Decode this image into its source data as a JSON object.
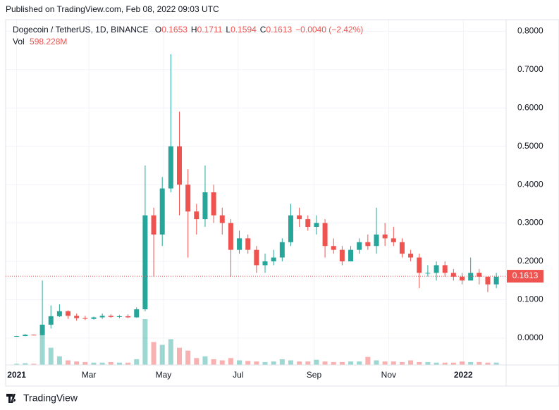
{
  "header": {
    "published": "Published on TradingView.com, Feb 08, 2022 09:03 UTC",
    "symbol": "Dogecoin / TetherUS, 1D, BINANCE",
    "ohlc": [
      {
        "label": "O",
        "value": "0.1653"
      },
      {
        "label": "H",
        "value": "0.1711"
      },
      {
        "label": "L",
        "value": "0.1594"
      },
      {
        "label": "C",
        "value": "0.1613"
      }
    ],
    "change": "−0.0040 (−2.42%)",
    "vol_label": "Vol",
    "vol_value": "598.228M"
  },
  "footer": {
    "brand": "TradingView"
  },
  "chart_data": {
    "type": "candlestick",
    "x": [
      0,
      7,
      14,
      21,
      28,
      35,
      42,
      49,
      56,
      63,
      70,
      77,
      84,
      91,
      98,
      105,
      112,
      119,
      126,
      133,
      140,
      147,
      154,
      161,
      168,
      175,
      182,
      189,
      196,
      203,
      210,
      217,
      224,
      231,
      238,
      245,
      252,
      259,
      266,
      273,
      280,
      287,
      294,
      301,
      308,
      315,
      322,
      329,
      336,
      343,
      350,
      357,
      364,
      371,
      378,
      385,
      392
    ],
    "open": [
      0.0047,
      0.0052,
      0.0088,
      0.0076,
      0.035,
      0.057,
      0.07,
      0.058,
      0.052,
      0.05,
      0.054,
      0.058,
      0.055,
      0.057,
      0.054,
      0.075,
      0.32,
      0.27,
      0.39,
      0.5,
      0.4,
      0.33,
      0.31,
      0.38,
      0.32,
      0.3,
      0.23,
      0.26,
      0.23,
      0.19,
      0.2,
      0.21,
      0.25,
      0.32,
      0.31,
      0.29,
      0.3,
      0.24,
      0.23,
      0.2,
      0.23,
      0.25,
      0.24,
      0.27,
      0.26,
      0.25,
      0.22,
      0.21,
      0.17,
      0.17,
      0.19,
      0.17,
      0.16,
      0.15,
      0.17,
      0.16,
      0.14
    ],
    "high": [
      0.0057,
      0.0105,
      0.0095,
      0.15,
      0.085,
      0.088,
      0.072,
      0.064,
      0.058,
      0.056,
      0.064,
      0.062,
      0.06,
      0.062,
      0.08,
      0.45,
      0.34,
      0.42,
      0.74,
      0.59,
      0.44,
      0.35,
      0.45,
      0.4,
      0.34,
      0.31,
      0.28,
      0.27,
      0.24,
      0.22,
      0.23,
      0.26,
      0.35,
      0.34,
      0.32,
      0.32,
      0.31,
      0.26,
      0.24,
      0.24,
      0.26,
      0.27,
      0.34,
      0.3,
      0.29,
      0.26,
      0.23,
      0.22,
      0.19,
      0.2,
      0.2,
      0.18,
      0.17,
      0.21,
      0.18,
      0.16,
      0.17
    ],
    "low": [
      0.0046,
      0.005,
      0.007,
      0.0072,
      0.025,
      0.055,
      0.05,
      0.045,
      0.047,
      0.048,
      0.05,
      0.053,
      0.052,
      0.052,
      0.053,
      0.07,
      0.16,
      0.24,
      0.38,
      0.32,
      0.21,
      0.27,
      0.29,
      0.3,
      0.27,
      0.16,
      0.22,
      0.22,
      0.17,
      0.17,
      0.19,
      0.2,
      0.24,
      0.29,
      0.28,
      0.27,
      0.21,
      0.22,
      0.19,
      0.2,
      0.22,
      0.23,
      0.22,
      0.24,
      0.24,
      0.21,
      0.2,
      0.13,
      0.16,
      0.15,
      0.16,
      0.15,
      0.14,
      0.15,
      0.14,
      0.12,
      0.13
    ],
    "close": [
      0.0052,
      0.0088,
      0.0076,
      0.035,
      0.057,
      0.07,
      0.058,
      0.052,
      0.05,
      0.054,
      0.058,
      0.055,
      0.057,
      0.054,
      0.075,
      0.32,
      0.27,
      0.39,
      0.5,
      0.4,
      0.33,
      0.31,
      0.38,
      0.32,
      0.3,
      0.23,
      0.26,
      0.23,
      0.19,
      0.2,
      0.21,
      0.25,
      0.32,
      0.31,
      0.29,
      0.3,
      0.24,
      0.23,
      0.2,
      0.23,
      0.25,
      0.24,
      0.27,
      0.26,
      0.25,
      0.22,
      0.21,
      0.17,
      0.17,
      0.19,
      0.17,
      0.16,
      0.15,
      0.17,
      0.16,
      0.14,
      0.16
    ],
    "volumes": [
      2,
      3,
      2,
      60,
      30,
      15,
      8,
      6,
      5,
      4,
      4,
      5,
      4,
      4,
      10,
      80,
      40,
      35,
      45,
      30,
      25,
      12,
      15,
      10,
      8,
      12,
      8,
      7,
      6,
      5,
      6,
      10,
      8,
      6,
      6,
      9,
      6,
      5,
      5,
      6,
      6,
      14,
      8,
      6,
      6,
      5,
      8,
      5,
      5,
      4,
      4,
      4,
      6,
      5,
      5,
      4,
      4
    ],
    "up_color": "#26a69a",
    "down_color": "#ef5350",
    "last_price": 0.1613,
    "xlim": [
      -9,
      400
    ],
    "xticks": [
      {
        "value": 0,
        "label": "2021"
      },
      {
        "value": 59,
        "label": "Mar"
      },
      {
        "value": 120,
        "label": "May"
      },
      {
        "value": 181,
        "label": "Jul"
      },
      {
        "value": 243,
        "label": "Sep"
      },
      {
        "value": 304,
        "label": "Nov"
      },
      {
        "value": 365,
        "label": "2022"
      }
    ],
    "ylim": [
      -0.07,
      0.83
    ],
    "yticks": [
      {
        "value": 0,
        "label": "0.0000"
      },
      {
        "value": 0.1,
        "label": "0.1000"
      },
      {
        "value": 0.2,
        "label": "0.2000"
      },
      {
        "value": 0.3,
        "label": "0.3000"
      },
      {
        "value": 0.4,
        "label": "0.4000"
      },
      {
        "value": 0.5,
        "label": "0.5000"
      },
      {
        "value": 0.6,
        "label": "0.6000"
      },
      {
        "value": 0.7,
        "label": "0.7000"
      },
      {
        "value": 0.8,
        "label": "0.8000"
      }
    ],
    "grid": true
  }
}
